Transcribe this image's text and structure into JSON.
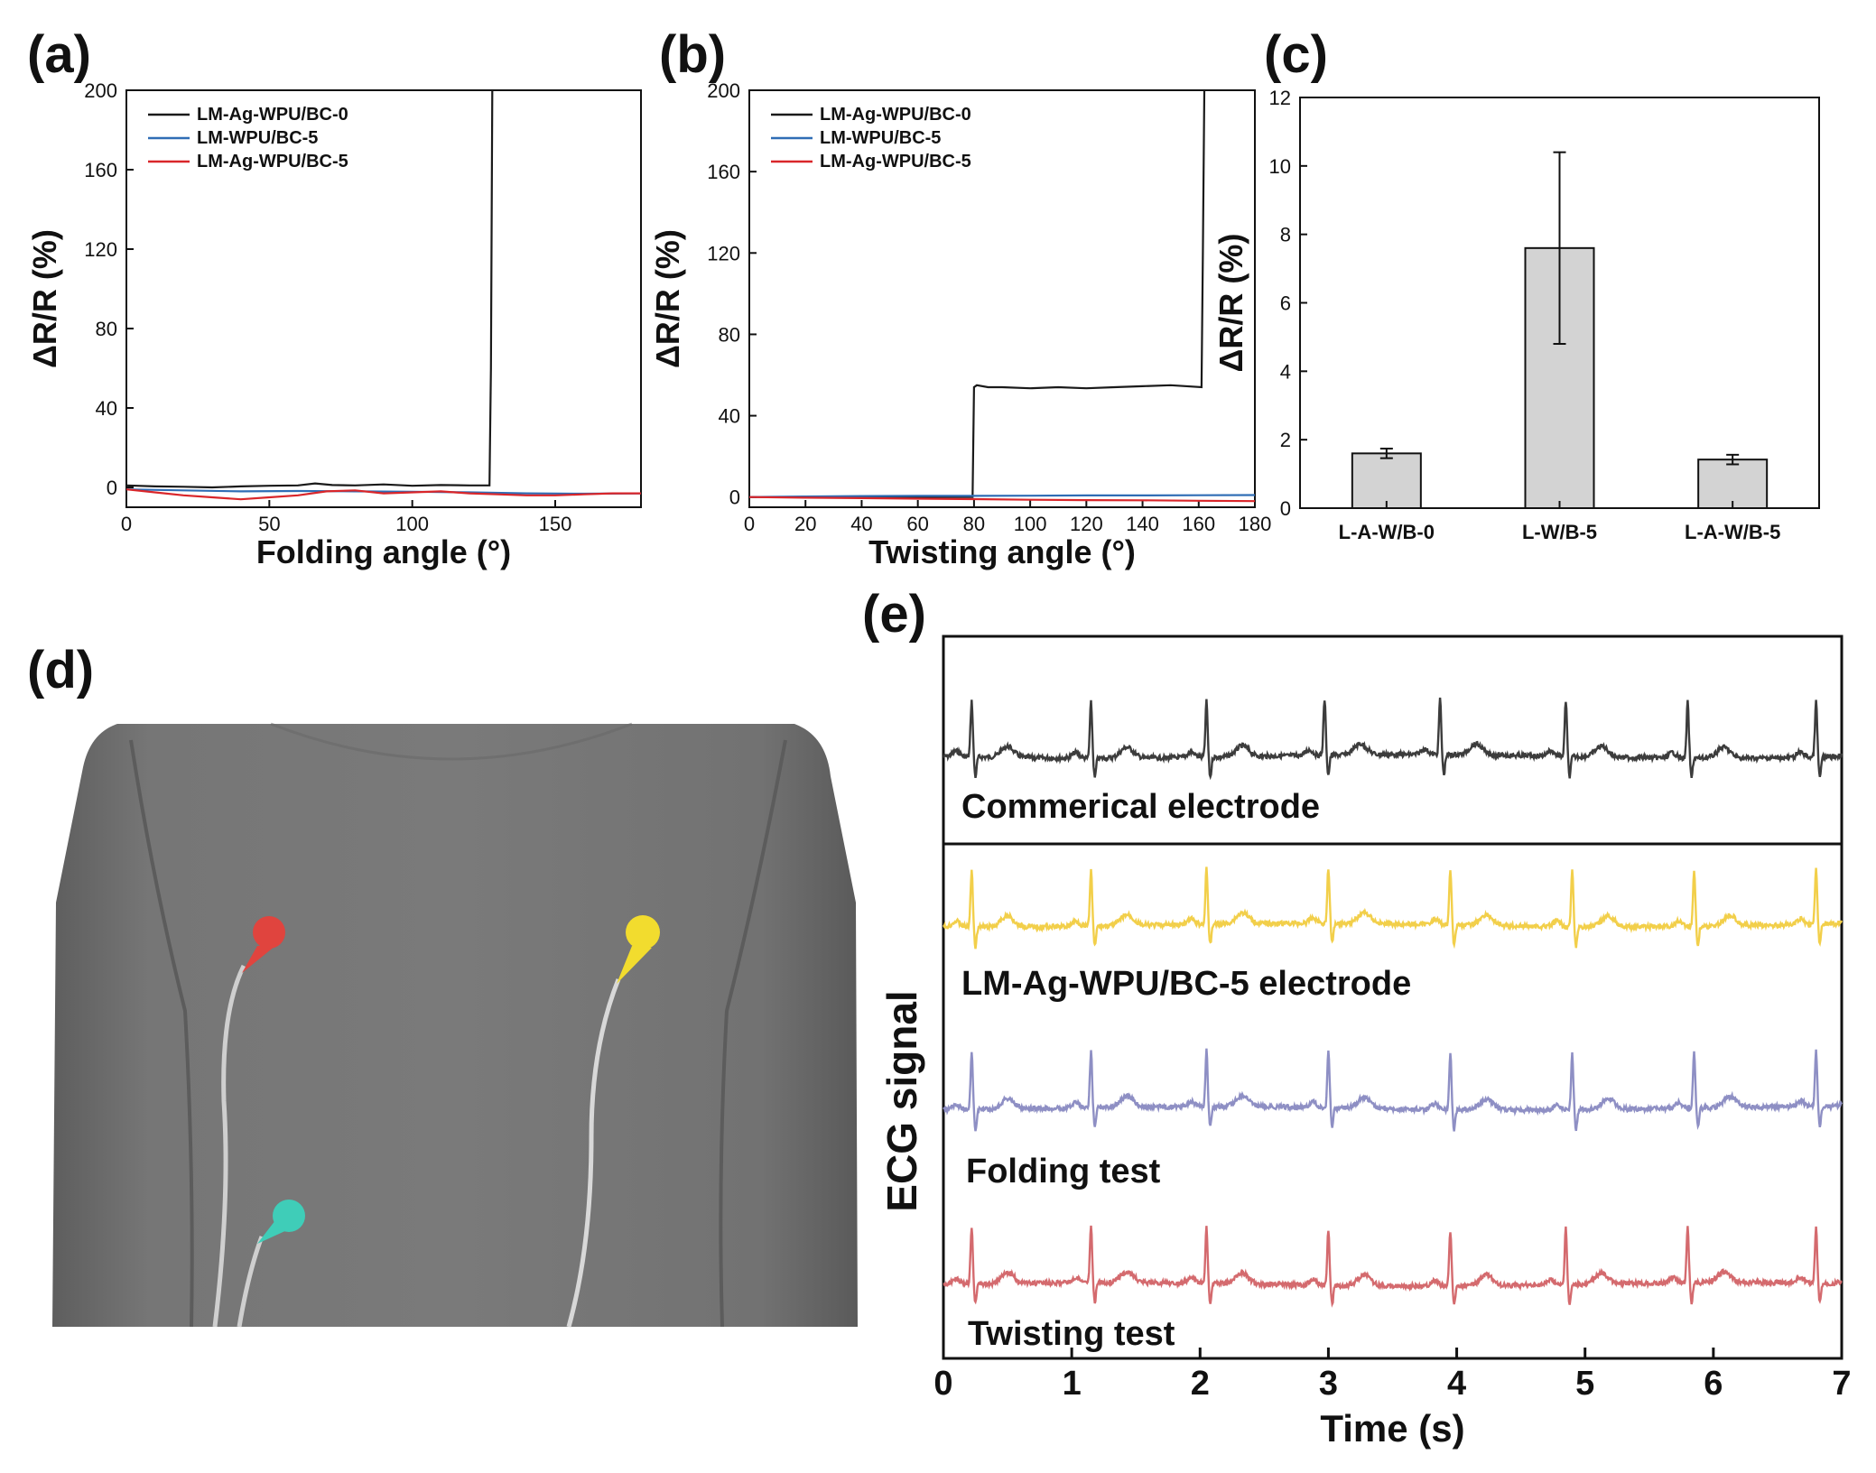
{
  "chart_data": [
    {
      "panel": "(a)",
      "type": "line",
      "xlabel": "Folding angle (°)",
      "ylabel": "ΔR/R (%)",
      "xlim": [
        0,
        180
      ],
      "ylim": [
        -10,
        200
      ],
      "xticks": [
        0,
        50,
        100,
        150
      ],
      "yticks": [
        0,
        40,
        80,
        120,
        160,
        200
      ],
      "legend": "top-left",
      "series": [
        {
          "name": "LM-Ag-WPU/BC-0",
          "color": "#1a1a1a",
          "x": [
            0,
            10,
            20,
            30,
            40,
            50,
            60,
            66,
            72,
            80,
            90,
            100,
            110,
            120,
            127,
            127.5,
            128
          ],
          "y": [
            1,
            0.5,
            0.3,
            0,
            0.5,
            0.8,
            1,
            2,
            1.2,
            1,
            1.5,
            0.8,
            1.2,
            1,
            1,
            60,
            200
          ]
        },
        {
          "name": "LM-WPU/BC-5",
          "color": "#2f6db5",
          "x": [
            0,
            20,
            40,
            60,
            80,
            100,
            120,
            140,
            160,
            180
          ],
          "y": [
            -1,
            -1.5,
            -2,
            -1.8,
            -2,
            -2.2,
            -2.5,
            -3,
            -3.2,
            -3
          ]
        },
        {
          "name": "LM-Ag-WPU/BC-5",
          "color": "#d9262a",
          "x": [
            0,
            10,
            20,
            30,
            40,
            50,
            60,
            70,
            80,
            90,
            100,
            110,
            120,
            130,
            140,
            150,
            160,
            170,
            180
          ],
          "y": [
            -1,
            -2.5,
            -4,
            -5,
            -6,
            -5,
            -4,
            -2,
            -1.5,
            -3,
            -2.5,
            -2,
            -3,
            -3.5,
            -4,
            -4,
            -3.5,
            -3,
            -3
          ]
        }
      ]
    },
    {
      "panel": "(b)",
      "type": "line",
      "xlabel": "Twisting angle (°)",
      "ylabel": "ΔR/R (%)",
      "xlim": [
        0,
        180
      ],
      "ylim": [
        -5,
        200
      ],
      "xticks": [
        0,
        20,
        40,
        60,
        80,
        100,
        120,
        140,
        160,
        180
      ],
      "yticks": [
        0,
        40,
        80,
        120,
        160,
        200
      ],
      "legend": "top-left",
      "series": [
        {
          "name": "LM-Ag-WPU/BC-0",
          "color": "#1a1a1a",
          "x": [
            0,
            20,
            40,
            60,
            79.5,
            80,
            81,
            85,
            90,
            100,
            110,
            120,
            130,
            140,
            150,
            161,
            161.5,
            162
          ],
          "y": [
            0,
            0,
            0,
            0,
            0,
            54,
            55,
            54,
            54,
            53.5,
            54,
            53.5,
            54,
            54.5,
            55,
            54,
            120,
            200
          ]
        },
        {
          "name": "LM-WPU/BC-5",
          "color": "#2f6db5",
          "x": [
            0,
            20,
            40,
            60,
            80,
            100,
            120,
            140,
            160,
            180
          ],
          "y": [
            0,
            0.3,
            0.5,
            0.6,
            0.6,
            0.7,
            0.8,
            0.8,
            0.9,
            1
          ]
        },
        {
          "name": "LM-Ag-WPU/BC-5",
          "color": "#d9262a",
          "x": [
            0,
            20,
            40,
            60,
            80,
            100,
            120,
            140,
            160,
            180
          ],
          "y": [
            0,
            -0.3,
            -0.5,
            -0.8,
            -1,
            -1.3,
            -1.5,
            -1.6,
            -1.8,
            -2
          ]
        }
      ]
    },
    {
      "panel": "(c)",
      "type": "bar",
      "ylabel": "ΔR/R (%)",
      "ylim": [
        0,
        12
      ],
      "yticks": [
        0,
        2,
        4,
        6,
        8,
        10,
        12
      ],
      "categories": [
        "L-A-W/B-0",
        "L-W/B-5",
        "L-A-W/B-5"
      ],
      "values": [
        1.6,
        7.6,
        1.42
      ],
      "errors": [
        0.14,
        2.8,
        0.14
      ],
      "bar_color": "#d3d3d3"
    },
    {
      "panel": "(e)",
      "type": "line",
      "xlabel": "Time (s)",
      "ylabel": "ECG signal",
      "xlim": [
        0,
        7
      ],
      "xticks": [
        0,
        1,
        2,
        3,
        4,
        5,
        6,
        7
      ],
      "series": [
        {
          "name": "Commerical electrode",
          "color": "#3c3c3c",
          "beats": [
            0.22,
            1.15,
            2.05,
            2.97,
            3.87,
            4.85,
            5.8,
            6.8
          ]
        },
        {
          "name": "LM-Ag-WPU/BC-5 electrode",
          "color": "#f2cf4a",
          "beats": [
            0.22,
            1.15,
            2.05,
            3.0,
            3.95,
            4.9,
            5.85,
            6.8
          ]
        },
        {
          "name": "Folding test",
          "color": "#8e8fc4",
          "beats": [
            0.22,
            1.15,
            2.05,
            3.0,
            3.95,
            4.9,
            5.85,
            6.8
          ]
        },
        {
          "name": "Twisting test",
          "color": "#d46a6e",
          "beats": [
            0.22,
            1.15,
            2.05,
            3.0,
            3.95,
            4.85,
            5.8,
            6.8
          ]
        }
      ]
    }
  ],
  "panels": {
    "a": "(a)",
    "b": "(b)",
    "c": "(c)",
    "d": "(d)",
    "e": "(e)"
  },
  "photo": {
    "shirt_color": "#6e6e6e",
    "electrode_colors": [
      "#e0443e",
      "#f2dc2e",
      "#3fcdb8"
    ]
  }
}
